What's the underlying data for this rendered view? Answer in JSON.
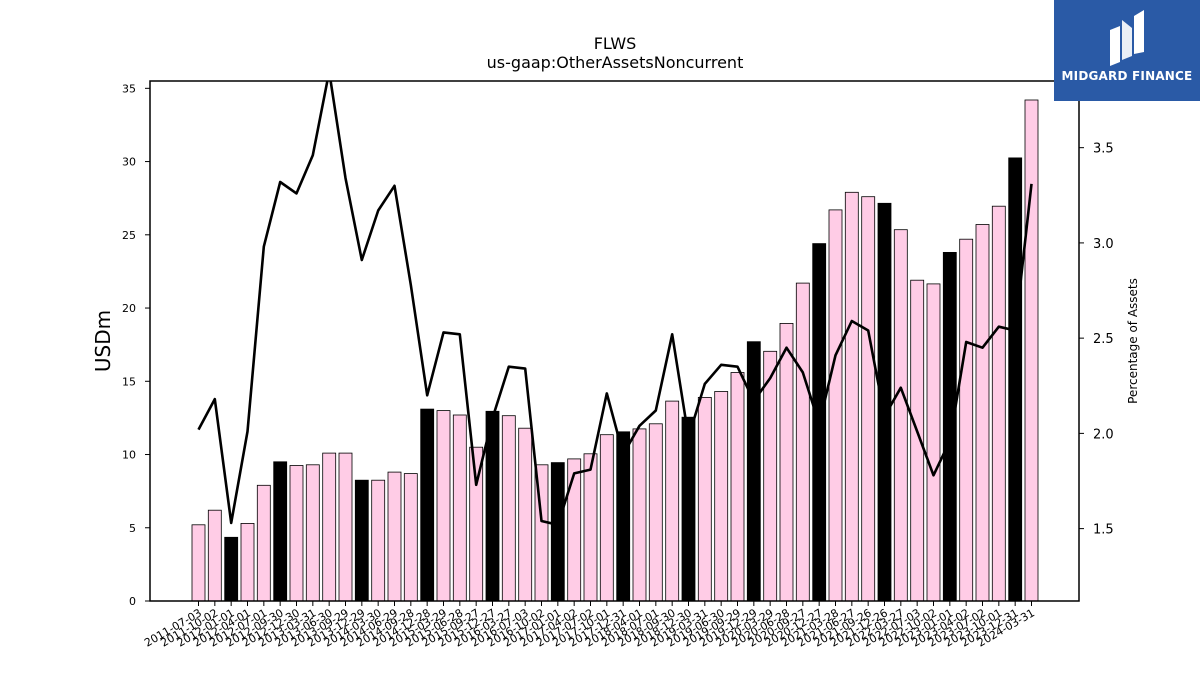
{
  "chart_data": {
    "type": "bar",
    "title": "FLWS",
    "subtitle": "us-gaap:OtherAssetsNoncurrent",
    "ylabel": "USDm",
    "y2label": "Percentage of Assets",
    "ylim": [
      0,
      35.5
    ],
    "y2lim": [
      1.12,
      3.85
    ],
    "yticks": [
      0,
      5,
      10,
      15,
      20,
      25,
      30,
      35
    ],
    "y2ticks": [
      1.5,
      2.0,
      2.5,
      3.0,
      3.5
    ],
    "categories": [
      "2011-07-03",
      "2011-10-02",
      "2012-01-01",
      "2012-04-01",
      "2012-07-01",
      "2012-09-30",
      "2012-12-30",
      "2013-03-31",
      "2013-06-30",
      "2013-09-29",
      "2013-12-29",
      "2014-03-30",
      "2014-06-29",
      "2014-09-28",
      "2014-12-28",
      "2015-03-29",
      "2015-06-28",
      "2015-09-27",
      "2015-12-27",
      "2016-03-27",
      "2016-07-03",
      "2016-10-02",
      "2017-01-01",
      "2017-04-02",
      "2017-07-02",
      "2017-10-01",
      "2017-12-31",
      "2018-04-01",
      "2018-07-01",
      "2018-09-30",
      "2018-12-30",
      "2019-03-31",
      "2019-06-30",
      "2019-09-29",
      "2019-12-29",
      "2020-03-29",
      "2020-06-28",
      "2020-09-27",
      "2020-12-27",
      "2021-03-28",
      "2021-06-27",
      "2021-09-26",
      "2021-12-26",
      "2022-03-27",
      "2022-07-03",
      "2022-10-02",
      "2023-01-01",
      "2023-04-02",
      "2023-07-02",
      "2023-10-01",
      "2023-12-31",
      "2024-03-31"
    ],
    "xtick_labels": [
      "2011-07-03",
      "2011-10-02",
      "2012-01-01",
      "2012-04-01",
      "2012-07-01",
      "2012-09-30",
      "2012-12-30",
      "2013-03-31",
      "2013-06-30",
      "2013-09-29",
      "2013-12-29",
      "2014-03-30",
      "2014-06-29",
      "2014-09-28",
      "2014-12-28",
      "2015-03-29",
      "2015-06-28",
      "2015-09-27",
      "2015-12-27",
      "2016-03-27",
      "2016-07-03",
      "2016-10-02",
      "2017-01-01",
      "2017-04-02",
      "2017-07-02",
      "2017-10-01",
      "2017-12-31",
      "2018-04-01",
      "2018-07-01",
      "2018-09-30",
      "2018-12-30",
      "2019-03-31",
      "2019-06-30",
      "2019-09-29",
      "2019-12-29",
      "2020-03-29",
      "2020-06-28",
      "2020-09-27",
      "2020-12-27",
      "2021-03-28",
      "2021-06-27",
      "2021-09-26",
      "2021-12-26",
      "2022-03-27",
      "2022-07-03",
      "2022-10-02",
      "2023-01-01",
      "2023-04-02",
      "2023-07-02",
      "2023-10-01",
      "2023-12-31",
      "2024-03-31"
    ],
    "bar_values": [
      5.2,
      6.2,
      4.35,
      5.3,
      7.9,
      9.5,
      9.25,
      9.3,
      10.1,
      10.1,
      8.25,
      8.25,
      8.8,
      8.7,
      13.1,
      13.0,
      12.7,
      10.5,
      12.95,
      12.65,
      11.8,
      9.3,
      9.45,
      9.7,
      10.05,
      11.35,
      11.55,
      11.75,
      12.1,
      13.65,
      12.55,
      13.9,
      14.3,
      15.6,
      17.7,
      17.05,
      18.95,
      21.7,
      24.4,
      26.7,
      27.9,
      27.6,
      27.15,
      25.35,
      21.9,
      21.65,
      23.8,
      24.7,
      25.7,
      26.95,
      30.25,
      34.2
    ],
    "bar_is_fiscal_q4": [
      false,
      false,
      true,
      false,
      false,
      true,
      false,
      false,
      false,
      false,
      true,
      false,
      false,
      false,
      true,
      false,
      false,
      false,
      true,
      false,
      false,
      false,
      true,
      false,
      false,
      false,
      true,
      false,
      false,
      false,
      true,
      false,
      false,
      false,
      true,
      false,
      false,
      false,
      true,
      false,
      false,
      false,
      true,
      false,
      false,
      false,
      true,
      false,
      false,
      false,
      true,
      false
    ],
    "series": [
      {
        "values": [
          2.02,
          2.18,
          1.53,
          2.01,
          2.98,
          3.32,
          3.26,
          3.46,
          3.9,
          3.34,
          2.91,
          3.17,
          3.3,
          2.78,
          2.2,
          2.53,
          2.52,
          1.73,
          2.08,
          2.35,
          2.34,
          1.54,
          1.52,
          1.79,
          1.81,
          2.21,
          1.89,
          2.04,
          2.12,
          2.52,
          1.98,
          2.26,
          2.36,
          2.35,
          2.17,
          2.29,
          2.45,
          2.32,
          2.05,
          2.41,
          2.59,
          2.54,
          2.09,
          2.24,
          2.01,
          1.78,
          1.96,
          2.48,
          2.45,
          2.56,
          2.54,
          3.31
        ]
      }
    ],
    "colors": {
      "bar": "#ffcce6",
      "bar_highlight": "#000000",
      "line": "#000000"
    },
    "grid": false,
    "legend": "none"
  },
  "logo": {
    "text": "MIDGARD FINANCE",
    "bg": "#2a5aa6"
  }
}
